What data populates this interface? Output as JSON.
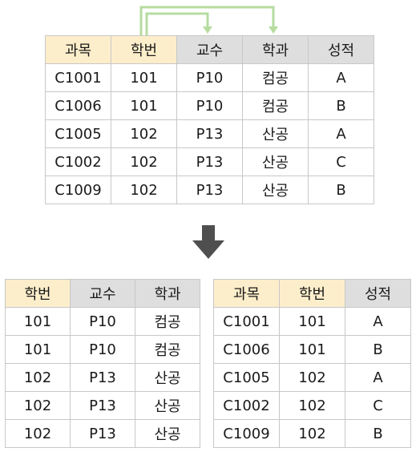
{
  "top_table": {
    "headers": [
      "과목",
      "학번",
      "교수",
      "학과",
      "성적"
    ],
    "key_columns": [
      0,
      1
    ],
    "rows": [
      [
        "C1001",
        "101",
        "P10",
        "컴공",
        "A"
      ],
      [
        "C1006",
        "101",
        "P10",
        "컴공",
        "B"
      ],
      [
        "C1005",
        "102",
        "P13",
        "산공",
        "A"
      ],
      [
        "C1002",
        "102",
        "P13",
        "산공",
        "C"
      ],
      [
        "C1009",
        "102",
        "P13",
        "산공",
        "B"
      ]
    ]
  },
  "left_table": {
    "headers": [
      "학번",
      "교수",
      "학과"
    ],
    "key_columns": [
      0
    ],
    "rows": [
      [
        "101",
        "P10",
        "컴공"
      ],
      [
        "101",
        "P10",
        "컴공"
      ],
      [
        "102",
        "P13",
        "산공"
      ],
      [
        "102",
        "P13",
        "산공"
      ],
      [
        "102",
        "P13",
        "산공"
      ]
    ]
  },
  "right_table": {
    "headers": [
      "과목",
      "학번",
      "성적"
    ],
    "key_columns": [
      0,
      1
    ],
    "rows": [
      [
        "C1001",
        "101",
        "A"
      ],
      [
        "C1006",
        "101",
        "B"
      ],
      [
        "C1005",
        "102",
        "A"
      ],
      [
        "C1002",
        "102",
        "C"
      ],
      [
        "C1009",
        "102",
        "B"
      ]
    ]
  },
  "colors": {
    "key_header": "#fdeecb",
    "header": "#dedede",
    "dependency_arrow": "#b6dca0",
    "down_arrow": "#4f4f4f"
  }
}
